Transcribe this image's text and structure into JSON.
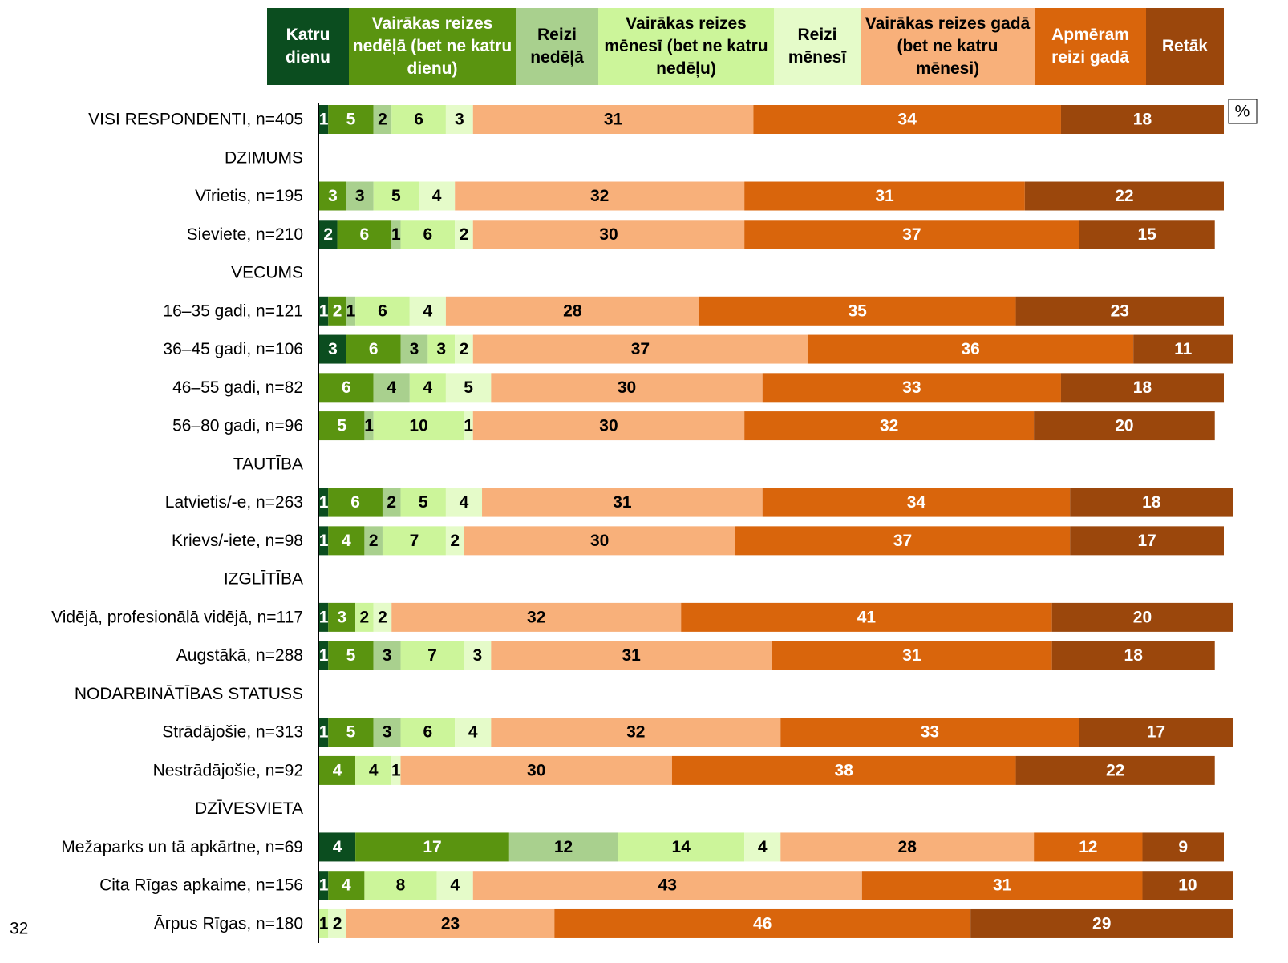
{
  "chart_data": {
    "type": "stacked_bar_horizontal",
    "unit": "%",
    "page_number": "32",
    "xlim": [
      0,
      100
    ],
    "categories": [
      "VISI RESPONDENTI, n=405",
      "DZIMUMS",
      "Vīrietis, n=195",
      "Sieviete, n=210",
      "VECUMS",
      "16–35 gadi, n=121",
      "36–45 gadi, n=106",
      "46–55 gadi, n=82",
      "56–80 gadi, n=96",
      "TAUTĪBA",
      "Latvietis/-e, n=263",
      "Krievs/-iete, n=98",
      "IZGLĪTĪBA",
      "Vidējā, profesionālā vidējā, n=117",
      "Augstākā, n=288",
      "NODARBINĀTĪBAS STATUSS",
      "Strādājošie, n=313",
      "Nestrādājošie, n=92",
      "DZĪVESVIETA",
      "Mežaparks un tā apkārtne, n=69",
      "Cita Rīgas apkaime, n=156",
      "Ārpus Rīgas, n=180"
    ],
    "series": [
      {
        "name": "Katru dienu",
        "color": "#0b4d1f",
        "values": [
          1,
          null,
          null,
          2,
          null,
          1,
          3,
          null,
          null,
          null,
          1,
          1,
          null,
          1,
          1,
          null,
          1,
          null,
          null,
          4,
          1,
          null
        ]
      },
      {
        "name": "Vairākas reizes nedēļā (bet ne katru dienu)",
        "color": "#5a9410",
        "values": [
          5,
          null,
          3,
          6,
          null,
          2,
          6,
          6,
          5,
          null,
          6,
          4,
          null,
          3,
          5,
          null,
          5,
          4,
          null,
          17,
          4,
          null
        ]
      },
      {
        "name": "Reizi nedēļā",
        "color": "#a9d08e",
        "values": [
          2,
          null,
          3,
          1,
          null,
          1,
          3,
          4,
          1,
          null,
          2,
          2,
          null,
          null,
          3,
          null,
          3,
          null,
          null,
          12,
          null,
          null
        ]
      },
      {
        "name": "Vairākas reizes mēnesī (bet ne katru nedēļu)",
        "color": "#ccf59a",
        "values": [
          6,
          null,
          5,
          6,
          null,
          6,
          3,
          4,
          10,
          null,
          5,
          7,
          null,
          2,
          7,
          null,
          6,
          4,
          null,
          14,
          8,
          1
        ]
      },
      {
        "name": "Reizi mēnesī",
        "color": "#e5fbc9",
        "values": [
          3,
          null,
          4,
          2,
          null,
          4,
          2,
          5,
          1,
          null,
          4,
          2,
          null,
          2,
          3,
          null,
          4,
          1,
          null,
          4,
          4,
          2
        ]
      },
      {
        "name": "Vairākas reizes gadā (bet ne katru mēnesi)",
        "color": "#f8b07a",
        "values": [
          31,
          null,
          32,
          30,
          null,
          28,
          37,
          30,
          30,
          null,
          31,
          30,
          null,
          32,
          31,
          null,
          32,
          30,
          null,
          28,
          43,
          23
        ]
      },
      {
        "name": "Apmēram reizi gadā",
        "color": "#d9650c",
        "values": [
          34,
          null,
          31,
          37,
          null,
          35,
          36,
          33,
          32,
          null,
          34,
          37,
          null,
          41,
          31,
          null,
          33,
          38,
          null,
          12,
          31,
          46
        ]
      },
      {
        "name": "Retāk",
        "color": "#9b470c",
        "values": [
          18,
          null,
          22,
          15,
          null,
          23,
          11,
          18,
          20,
          null,
          18,
          17,
          null,
          20,
          18,
          null,
          17,
          22,
          null,
          9,
          10,
          29
        ]
      }
    ]
  }
}
